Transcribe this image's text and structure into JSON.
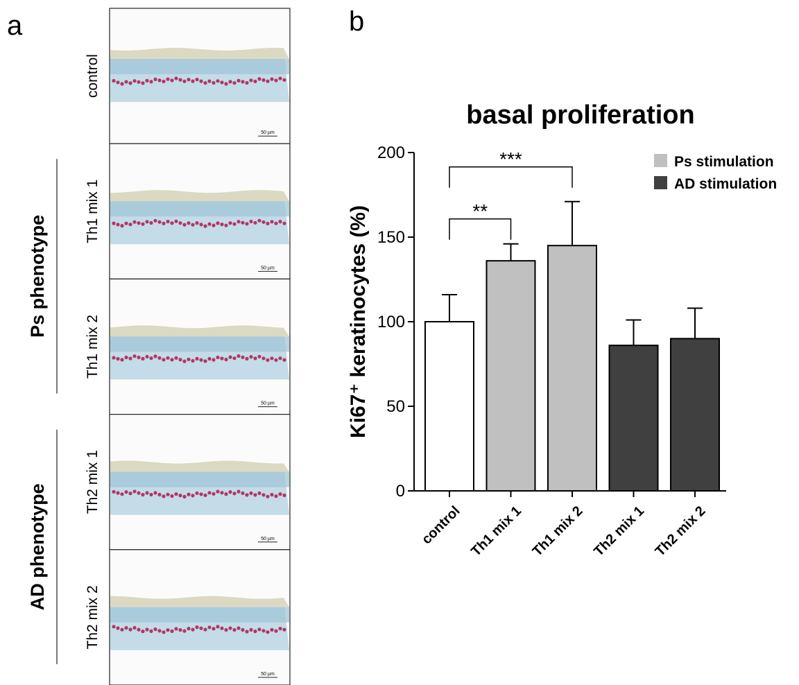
{
  "panel_a": {
    "label": "a",
    "rows": [
      "control",
      "Th1 mix 1",
      "Th1 mix 2",
      "Th2 mix 1",
      "Th2 mix 2"
    ],
    "groups": [
      {
        "text": "Ps phenotype",
        "rows": [
          "Th1 mix 1",
          "Th1 mix 2"
        ]
      },
      {
        "text": "AD phenotype",
        "rows": [
          "Th2 mix 1",
          "Th2 mix 2"
        ]
      }
    ],
    "scale_bar": "50 µm"
  },
  "chart_data": {
    "type": "bar",
    "label": "b",
    "title": "basal proliferation",
    "y_label": "Ki67⁺ keratinocytes (%)",
    "categories": [
      "control",
      "Th1 mix 1",
      "Th1 mix 2",
      "Th2 mix 1",
      "Th2 mix 2"
    ],
    "values": [
      100,
      136,
      145,
      86,
      90
    ],
    "errors": [
      16,
      10,
      26,
      15,
      18
    ],
    "colors": [
      "#ffffff",
      "#c0c0c0",
      "#c0c0c0",
      "#404040",
      "#404040"
    ],
    "legend": [
      {
        "name": "Ps stimulation",
        "color": "#c0c0c0"
      },
      {
        "name": "AD stimulation",
        "color": "#404040"
      }
    ],
    "legend_position": "upper right",
    "annotations": [
      {
        "text": "**",
        "between": [
          "control",
          "Th1 mix 1"
        ]
      },
      {
        "text": "***",
        "between": [
          "control",
          "Th1 mix 2"
        ]
      }
    ],
    "ylim": [
      0,
      200
    ],
    "yticks": [
      0,
      50,
      100,
      150,
      200
    ],
    "grid": false
  }
}
